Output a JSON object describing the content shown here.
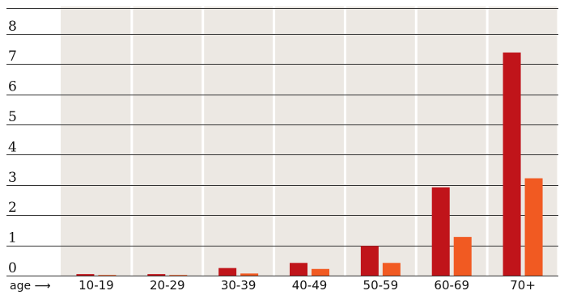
{
  "chart_data": {
    "type": "bar",
    "xlabel": "age ⟶",
    "categories": [
      "10-19",
      "20-29",
      "30-39",
      "40-49",
      "50-59",
      "60-69",
      "70+"
    ],
    "series": [
      {
        "values": [
          0.05,
          0.05,
          0.25,
          0.42,
          0.98,
          2.92,
          7.38
        ],
        "color": "#c0141a"
      },
      {
        "values": [
          0.02,
          0.02,
          0.07,
          0.22,
          0.42,
          1.28,
          3.22
        ],
        "color": "#f15a22"
      }
    ],
    "yticks": [
      0,
      1,
      2,
      3,
      4,
      5,
      6,
      7,
      8
    ],
    "ylim": [
      0,
      8.9
    ],
    "grid": true,
    "background": "#ece8e3"
  }
}
